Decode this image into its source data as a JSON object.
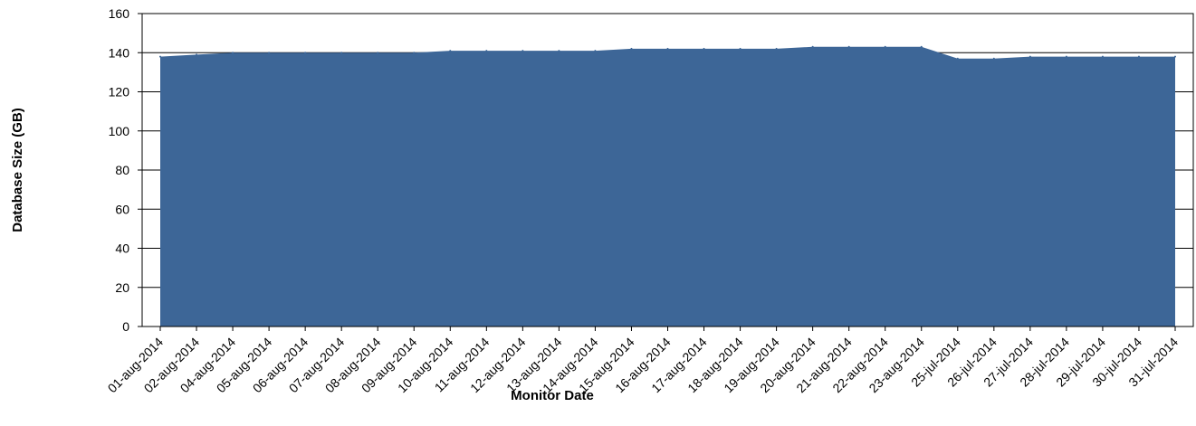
{
  "chart_data": {
    "type": "area",
    "xlabel": "Monitor Date",
    "ylabel": "Database Size (GB)",
    "ylim": [
      0,
      160
    ],
    "yticks": [
      0,
      20,
      40,
      60,
      80,
      100,
      120,
      140,
      160
    ],
    "grid": "horizontal",
    "colors": {
      "area": "#3d6697",
      "grid": "#000000",
      "frame": "#000000"
    },
    "categories": [
      "01-aug-2014",
      "02-aug-2014",
      "04-aug-2014",
      "05-aug-2014",
      "06-aug-2014",
      "07-aug-2014",
      "08-aug-2014",
      "09-aug-2014",
      "10-aug-2014",
      "11-aug-2014",
      "12-aug-2014",
      "13-aug-2014",
      "14-aug-2014",
      "15-aug-2014",
      "16-aug-2014",
      "17-aug-2014",
      "18-aug-2014",
      "19-aug-2014",
      "20-aug-2014",
      "21-aug-2014",
      "22-aug-2014",
      "23-aug-2014",
      "25-jul-2014",
      "26-jul-2014",
      "27-jul-2014",
      "28-jul-2014",
      "29-jul-2014",
      "30-jul-2014",
      "31-jul-2014"
    ],
    "values": [
      138,
      139,
      140,
      140,
      140,
      140,
      140,
      140,
      141,
      141,
      141,
      141,
      141,
      142,
      142,
      142,
      142,
      142,
      143,
      143,
      143,
      143,
      137,
      137,
      138,
      138,
      138,
      138,
      138
    ]
  }
}
